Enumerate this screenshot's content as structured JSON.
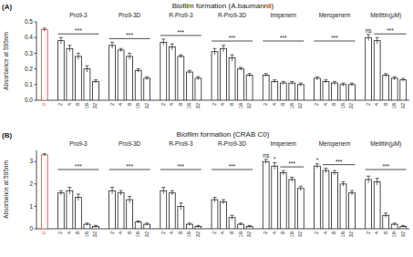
{
  "chart_data": [
    {
      "type": "bar",
      "panel": "(A)",
      "title": "Biofilm formation (A.baumannii)",
      "y_label": "Absorbance at 595nm",
      "categories": [
        "0",
        "2",
        "4",
        "8",
        "16",
        "32",
        "2",
        "4",
        "8",
        "16",
        "32",
        "2",
        "4",
        "8",
        "16",
        "32",
        "2",
        "4",
        "8",
        "16",
        "32",
        "2",
        "4",
        "8",
        "16",
        "32",
        "2",
        "4",
        "8",
        "16",
        "32",
        "2",
        "4",
        "8",
        "16",
        "32"
      ],
      "values": [
        0.45,
        0.38,
        0.33,
        0.28,
        0.2,
        0.12,
        0.35,
        0.32,
        0.28,
        0.19,
        0.14,
        0.37,
        0.34,
        0.28,
        0.18,
        0.14,
        0.31,
        0.33,
        0.27,
        0.2,
        0.16,
        0.16,
        0.12,
        0.11,
        0.11,
        0.1,
        0.14,
        0.12,
        0.11,
        0.1,
        0.1,
        0.4,
        0.38,
        0.16,
        0.14,
        0.13
      ],
      "errors": [
        0.01,
        0.02,
        0.02,
        0.02,
        0.02,
        0.01,
        0.02,
        0.01,
        0.02,
        0.01,
        0.01,
        0.02,
        0.02,
        0.01,
        0.01,
        0.01,
        0.02,
        0.02,
        0.02,
        0.01,
        0.01,
        0.01,
        0.01,
        0.01,
        0.01,
        0.01,
        0.01,
        0.01,
        0.01,
        0.01,
        0.01,
        0.02,
        0.02,
        0.01,
        0.01,
        0.01
      ],
      "ylim": [
        0,
        0.5
      ],
      "yticks": [
        {
          "value": 0,
          "label": "0.0"
        },
        0.1,
        0.2,
        0.3,
        0.4,
        0.5
      ],
      "groups": [
        {
          "label": "Pro9-3",
          "start": 1,
          "end": 5,
          "annotations": [
            {
              "text": "***",
              "start": 1,
              "end": 5
            }
          ]
        },
        {
          "label": "Pro9-3D",
          "start": 6,
          "end": 10,
          "annotations": [
            {
              "text": "***",
              "start": 6,
              "end": 10
            }
          ]
        },
        {
          "label": "R-Pro9-3",
          "start": 11,
          "end": 15,
          "annotations": [
            {
              "text": "***",
              "start": 11,
              "end": 15
            }
          ]
        },
        {
          "label": "R-Pro9-3D",
          "start": 16,
          "end": 20,
          "annotations": [
            {
              "text": "***",
              "start": 16,
              "end": 20
            }
          ]
        },
        {
          "label": "Imipenem",
          "start": 21,
          "end": 25,
          "annotations": [
            {
              "text": "***",
              "start": 21,
              "end": 25
            }
          ]
        },
        {
          "label": "Meropenem",
          "start": 26,
          "end": 30,
          "annotations": [
            {
              "text": "***",
              "start": 26,
              "end": 30
            }
          ]
        },
        {
          "label": "Melittin(μM)",
          "start": 31,
          "end": 35,
          "annotations": [
            {
              "text": "ns",
              "start": 31,
              "end": 31
            },
            {
              "text": "***",
              "start": 32,
              "end": 35
            }
          ]
        }
      ]
    },
    {
      "type": "bar",
      "panel": "(B)",
      "title": "Biofilm formation (CRAB C0)",
      "y_label": "Absorbance at 595nm",
      "categories": [
        "0",
        "2",
        "4",
        "8",
        "16",
        "32",
        "2",
        "4",
        "8",
        "16",
        "32",
        "2",
        "4",
        "8",
        "16",
        "32",
        "2",
        "4",
        "8",
        "16",
        "32",
        "2",
        "4",
        "8",
        "16",
        "32",
        "2",
        "4",
        "8",
        "16",
        "32",
        "2",
        "4",
        "8",
        "16",
        "32"
      ],
      "values": [
        3.3,
        1.6,
        1.7,
        1.4,
        0.2,
        0.1,
        1.7,
        1.6,
        1.3,
        0.3,
        0.2,
        1.7,
        1.6,
        1.0,
        0.2,
        0.1,
        1.3,
        1.2,
        0.5,
        0.2,
        0.1,
        3.0,
        2.8,
        2.5,
        2.2,
        1.8,
        2.8,
        2.6,
        2.5,
        2.0,
        1.6,
        2.2,
        2.1,
        0.6,
        0.2,
        0.1
      ],
      "errors": [
        0.05,
        0.1,
        0.15,
        0.15,
        0.05,
        0.05,
        0.15,
        0.1,
        0.15,
        0.05,
        0.05,
        0.15,
        0.1,
        0.15,
        0.05,
        0.05,
        0.1,
        0.1,
        0.1,
        0.05,
        0.05,
        0.1,
        0.15,
        0.1,
        0.1,
        0.1,
        0.1,
        0.1,
        0.1,
        0.1,
        0.1,
        0.15,
        0.15,
        0.1,
        0.05,
        0.05
      ],
      "ylim": [
        0,
        3.5
      ],
      "yticks": [
        0,
        1,
        2,
        3
      ],
      "groups": [
        {
          "label": "Pro9-3",
          "start": 1,
          "end": 5,
          "annotations": [
            {
              "text": "***",
              "start": 1,
              "end": 5
            }
          ]
        },
        {
          "label": "Pro9-3D",
          "start": 6,
          "end": 10,
          "annotations": [
            {
              "text": "***",
              "start": 6,
              "end": 10
            }
          ]
        },
        {
          "label": "R-Pro9-3",
          "start": 11,
          "end": 15,
          "annotations": [
            {
              "text": "***",
              "start": 11,
              "end": 15
            }
          ]
        },
        {
          "label": "R-Pro9-3D",
          "start": 16,
          "end": 20,
          "annotations": [
            {
              "text": "***",
              "start": 16,
              "end": 20
            }
          ]
        },
        {
          "label": "Imipenem",
          "start": 21,
          "end": 25,
          "annotations": [
            {
              "text": "ns",
              "start": 21,
              "end": 21
            },
            {
              "text": "*",
              "start": 22,
              "end": 22
            },
            {
              "text": "***",
              "start": 23,
              "end": 25
            }
          ]
        },
        {
          "label": "Meropenem",
          "start": 26,
          "end": 30,
          "annotations": [
            {
              "text": "*",
              "start": 26,
              "end": 26
            },
            {
              "text": "***",
              "start": 27,
              "end": 30
            }
          ]
        },
        {
          "label": "Melittin(μM)",
          "start": 31,
          "end": 35,
          "annotations": [
            {
              "text": "***",
              "start": 31,
              "end": 35
            }
          ]
        }
      ]
    }
  ]
}
